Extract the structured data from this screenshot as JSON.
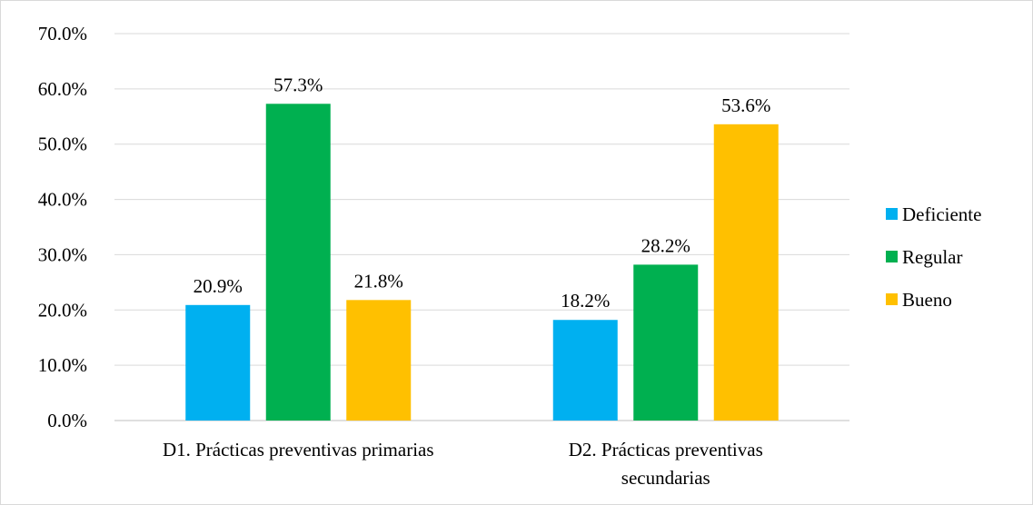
{
  "chart_data": {
    "type": "bar",
    "title": "",
    "xlabel": "",
    "ylabel": "",
    "ylim": [
      0,
      70
    ],
    "yticks": [
      0,
      10,
      20,
      30,
      40,
      50,
      60,
      70
    ],
    "ytick_labels": [
      "0.0%",
      "10.0%",
      "20.0%",
      "30.0%",
      "40.0%",
      "50.0%",
      "60.0%",
      "70.0%"
    ],
    "categories": [
      [
        "D1. Prácticas preventivas primarias"
      ],
      [
        "D2. Prácticas preventivas",
        "secundarias"
      ]
    ],
    "series": [
      {
        "name": "Deficiente",
        "color": "#00b0f0",
        "values": [
          20.9,
          18.2
        ],
        "labels": [
          "20.9%",
          "18.2%"
        ]
      },
      {
        "name": "Regular",
        "color": "#00b050",
        "values": [
          57.3,
          28.2
        ],
        "labels": [
          "57.3%",
          "28.2%"
        ]
      },
      {
        "name": "Bueno",
        "color": "#ffc000",
        "values": [
          21.8,
          53.6
        ],
        "labels": [
          "21.8%",
          "53.6%"
        ]
      }
    ],
    "grid": true,
    "gridline_color": "#d9d9d9",
    "legend_position": "right"
  }
}
